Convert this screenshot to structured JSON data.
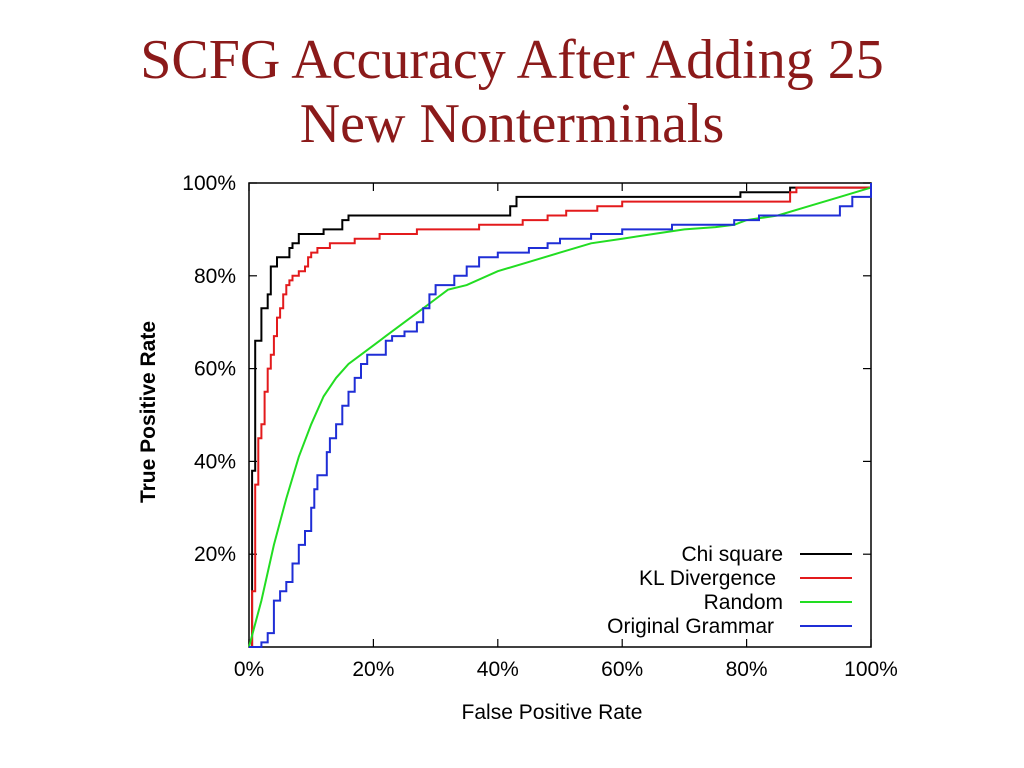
{
  "slide": {
    "title_line1": "SCFG Accuracy After Adding 25",
    "title_line2": "New Nonterminals"
  },
  "chart_data": {
    "type": "line",
    "title": "",
    "xlabel": "False Positive Rate",
    "ylabel": "True Positive Rate",
    "xlim": [
      0,
      100
    ],
    "ylim": [
      0,
      100
    ],
    "x_ticks": [
      "0%",
      "20%",
      "40%",
      "60%",
      "80%",
      "100%"
    ],
    "y_ticks": [
      "20%",
      "40%",
      "60%",
      "80%",
      "100%"
    ],
    "legend_position": "bottom-right",
    "series": [
      {
        "name": "Chi square",
        "color": "#000000",
        "step": true,
        "points": [
          [
            0,
            0
          ],
          [
            0.5,
            0
          ],
          [
            0.5,
            38
          ],
          [
            1,
            38
          ],
          [
            1,
            66
          ],
          [
            2,
            66
          ],
          [
            2,
            73
          ],
          [
            3,
            73
          ],
          [
            3,
            76
          ],
          [
            3.5,
            76
          ],
          [
            3.5,
            82
          ],
          [
            4.5,
            82
          ],
          [
            4.5,
            84
          ],
          [
            5,
            84
          ],
          [
            5,
            84
          ],
          [
            6.5,
            84
          ],
          [
            6.5,
            86
          ],
          [
            7,
            86
          ],
          [
            7,
            87
          ],
          [
            8,
            87
          ],
          [
            8,
            89
          ],
          [
            9,
            89
          ],
          [
            9,
            89
          ],
          [
            12,
            89
          ],
          [
            12,
            90
          ],
          [
            15,
            90
          ],
          [
            15,
            92
          ],
          [
            16,
            92
          ],
          [
            16,
            93
          ],
          [
            42,
            93
          ],
          [
            42,
            95
          ],
          [
            43,
            95
          ],
          [
            43,
            97
          ],
          [
            79,
            97
          ],
          [
            79,
            98
          ],
          [
            87,
            98
          ],
          [
            87,
            99
          ],
          [
            100,
            99
          ],
          [
            100,
            100
          ]
        ]
      },
      {
        "name": "KL Divergence",
        "color": "#e31a1c",
        "step": true,
        "points": [
          [
            0,
            0
          ],
          [
            0.5,
            0
          ],
          [
            0.5,
            12
          ],
          [
            1,
            12
          ],
          [
            1,
            35
          ],
          [
            1.5,
            35
          ],
          [
            1.5,
            45
          ],
          [
            2,
            45
          ],
          [
            2,
            48
          ],
          [
            2.5,
            48
          ],
          [
            2.5,
            55
          ],
          [
            3,
            55
          ],
          [
            3,
            60
          ],
          [
            3.5,
            60
          ],
          [
            3.5,
            63
          ],
          [
            4,
            63
          ],
          [
            4,
            67
          ],
          [
            4.5,
            67
          ],
          [
            4.5,
            71
          ],
          [
            5,
            71
          ],
          [
            5,
            73
          ],
          [
            5.5,
            73
          ],
          [
            5.5,
            76
          ],
          [
            6,
            76
          ],
          [
            6,
            78
          ],
          [
            6.5,
            78
          ],
          [
            6.5,
            79
          ],
          [
            7,
            79
          ],
          [
            7,
            80
          ],
          [
            8,
            80
          ],
          [
            8,
            81
          ],
          [
            9,
            81
          ],
          [
            9,
            82
          ],
          [
            9.5,
            82
          ],
          [
            9.5,
            84
          ],
          [
            10,
            84
          ],
          [
            10,
            85
          ],
          [
            11,
            85
          ],
          [
            11,
            86
          ],
          [
            13,
            86
          ],
          [
            13,
            87
          ],
          [
            17,
            87
          ],
          [
            17,
            88
          ],
          [
            21,
            88
          ],
          [
            21,
            89
          ],
          [
            27,
            89
          ],
          [
            27,
            90
          ],
          [
            37,
            90
          ],
          [
            37,
            91
          ],
          [
            44,
            91
          ],
          [
            44,
            92
          ],
          [
            48,
            92
          ],
          [
            48,
            93
          ],
          [
            51,
            93
          ],
          [
            51,
            94
          ],
          [
            56,
            94
          ],
          [
            56,
            95
          ],
          [
            60,
            95
          ],
          [
            60,
            96
          ],
          [
            87,
            96
          ],
          [
            87,
            98
          ],
          [
            88,
            98
          ],
          [
            88,
            99
          ],
          [
            100,
            99
          ],
          [
            100,
            100
          ]
        ]
      },
      {
        "name": "Random",
        "color": "#22dd22",
        "step": false,
        "points": [
          [
            0,
            0
          ],
          [
            2,
            10
          ],
          [
            4,
            22
          ],
          [
            6,
            32
          ],
          [
            8,
            41
          ],
          [
            10,
            48
          ],
          [
            12,
            54
          ],
          [
            14,
            58
          ],
          [
            16,
            61
          ],
          [
            18,
            63
          ],
          [
            20,
            65
          ],
          [
            22,
            67
          ],
          [
            25,
            70
          ],
          [
            28,
            73
          ],
          [
            30,
            75
          ],
          [
            32,
            77
          ],
          [
            35,
            78
          ],
          [
            40,
            81
          ],
          [
            45,
            83
          ],
          [
            50,
            85
          ],
          [
            55,
            87
          ],
          [
            60,
            88
          ],
          [
            65,
            89
          ],
          [
            70,
            90
          ],
          [
            75,
            90.5
          ],
          [
            78,
            91
          ],
          [
            80,
            92
          ],
          [
            85,
            93
          ],
          [
            90,
            95
          ],
          [
            95,
            97
          ],
          [
            100,
            99
          ]
        ]
      },
      {
        "name": "Original Grammar",
        "color": "#1f2ed6",
        "step": true,
        "points": [
          [
            0,
            0
          ],
          [
            2,
            0
          ],
          [
            2,
            1
          ],
          [
            3,
            1
          ],
          [
            3,
            3
          ],
          [
            4,
            3
          ],
          [
            4,
            10
          ],
          [
            5,
            10
          ],
          [
            5,
            12
          ],
          [
            6,
            12
          ],
          [
            6,
            14
          ],
          [
            7,
            14
          ],
          [
            7,
            18
          ],
          [
            8,
            18
          ],
          [
            8,
            22
          ],
          [
            9,
            22
          ],
          [
            9,
            25
          ],
          [
            10,
            25
          ],
          [
            10,
            30
          ],
          [
            10.5,
            30
          ],
          [
            10.5,
            34
          ],
          [
            11,
            34
          ],
          [
            11,
            37
          ],
          [
            12.5,
            37
          ],
          [
            12.5,
            42
          ],
          [
            13,
            42
          ],
          [
            13,
            45
          ],
          [
            14,
            45
          ],
          [
            14,
            48
          ],
          [
            15,
            48
          ],
          [
            15,
            52
          ],
          [
            16,
            52
          ],
          [
            16,
            55
          ],
          [
            17,
            55
          ],
          [
            17,
            58
          ],
          [
            18,
            58
          ],
          [
            18,
            61
          ],
          [
            19,
            61
          ],
          [
            19,
            63
          ],
          [
            20,
            63
          ],
          [
            20,
            63
          ],
          [
            22,
            63
          ],
          [
            22,
            66
          ],
          [
            23,
            66
          ],
          [
            23,
            67
          ],
          [
            25,
            67
          ],
          [
            25,
            68
          ],
          [
            27,
            68
          ],
          [
            27,
            70
          ],
          [
            28,
            70
          ],
          [
            28,
            73
          ],
          [
            29,
            73
          ],
          [
            29,
            76
          ],
          [
            30,
            76
          ],
          [
            30,
            78
          ],
          [
            33,
            78
          ],
          [
            33,
            80
          ],
          [
            35,
            80
          ],
          [
            35,
            82
          ],
          [
            37,
            82
          ],
          [
            37,
            84
          ],
          [
            40,
            84
          ],
          [
            40,
            85
          ],
          [
            45,
            85
          ],
          [
            45,
            86
          ],
          [
            48,
            86
          ],
          [
            48,
            87
          ],
          [
            50,
            87
          ],
          [
            50,
            88
          ],
          [
            55,
            88
          ],
          [
            55,
            89
          ],
          [
            60,
            89
          ],
          [
            60,
            90
          ],
          [
            68,
            90
          ],
          [
            68,
            91
          ],
          [
            78,
            91
          ],
          [
            78,
            92
          ],
          [
            82,
            92
          ],
          [
            82,
            93
          ],
          [
            95,
            93
          ],
          [
            95,
            95
          ],
          [
            97,
            95
          ],
          [
            97,
            97
          ],
          [
            100,
            97
          ],
          [
            100,
            100
          ]
        ]
      }
    ]
  }
}
